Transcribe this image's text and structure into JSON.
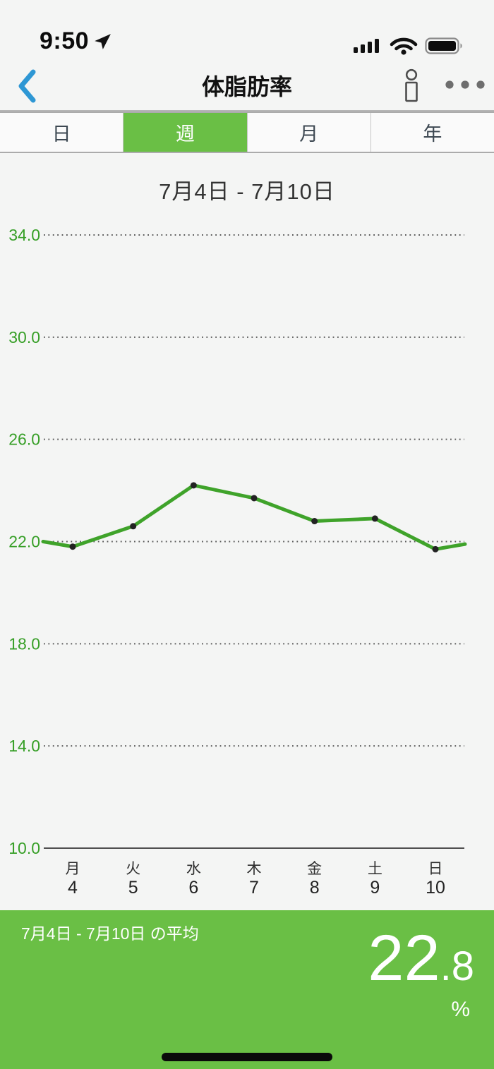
{
  "colors": {
    "accent_green": "#6abf45",
    "back_blue": "#2e97d4"
  },
  "status_bar": {
    "time": "9:50"
  },
  "nav": {
    "title": "体脂肪率"
  },
  "tabs": {
    "items": [
      {
        "label": "日",
        "selected": false
      },
      {
        "label": "週",
        "selected": true
      },
      {
        "label": "月",
        "selected": false
      },
      {
        "label": "年",
        "selected": false
      }
    ]
  },
  "chart_data": {
    "type": "line",
    "title": "7月4日 - 7月10日",
    "categories": [
      {
        "weekday": "月",
        "day": "4"
      },
      {
        "weekday": "火",
        "day": "5"
      },
      {
        "weekday": "水",
        "day": "6"
      },
      {
        "weekday": "木",
        "day": "7"
      },
      {
        "weekday": "金",
        "day": "8"
      },
      {
        "weekday": "土",
        "day": "9"
      },
      {
        "weekday": "日",
        "day": "10"
      }
    ],
    "values": [
      21.8,
      22.6,
      24.2,
      23.7,
      22.8,
      22.9,
      21.7
    ],
    "edge_values": {
      "start": 22.0,
      "end": 21.9
    },
    "yticks": [
      34.0,
      30.0,
      26.0,
      22.0,
      18.0,
      14.0,
      10.0
    ],
    "ylim": [
      10.0,
      35.0
    ],
    "grid": "dotted",
    "legend": "none",
    "ylabel": "",
    "xlabel": "",
    "colors": {
      "line": "#3fa32a",
      "marker": "#222222",
      "tick_label": "#379f27",
      "grid": "#5a5a5a",
      "axis": "#4f4f4f"
    }
  },
  "footer": {
    "label": "7月4日 - 7月10日 の平均",
    "value_main": "22",
    "value_decimal": ".8",
    "unit": "%"
  }
}
